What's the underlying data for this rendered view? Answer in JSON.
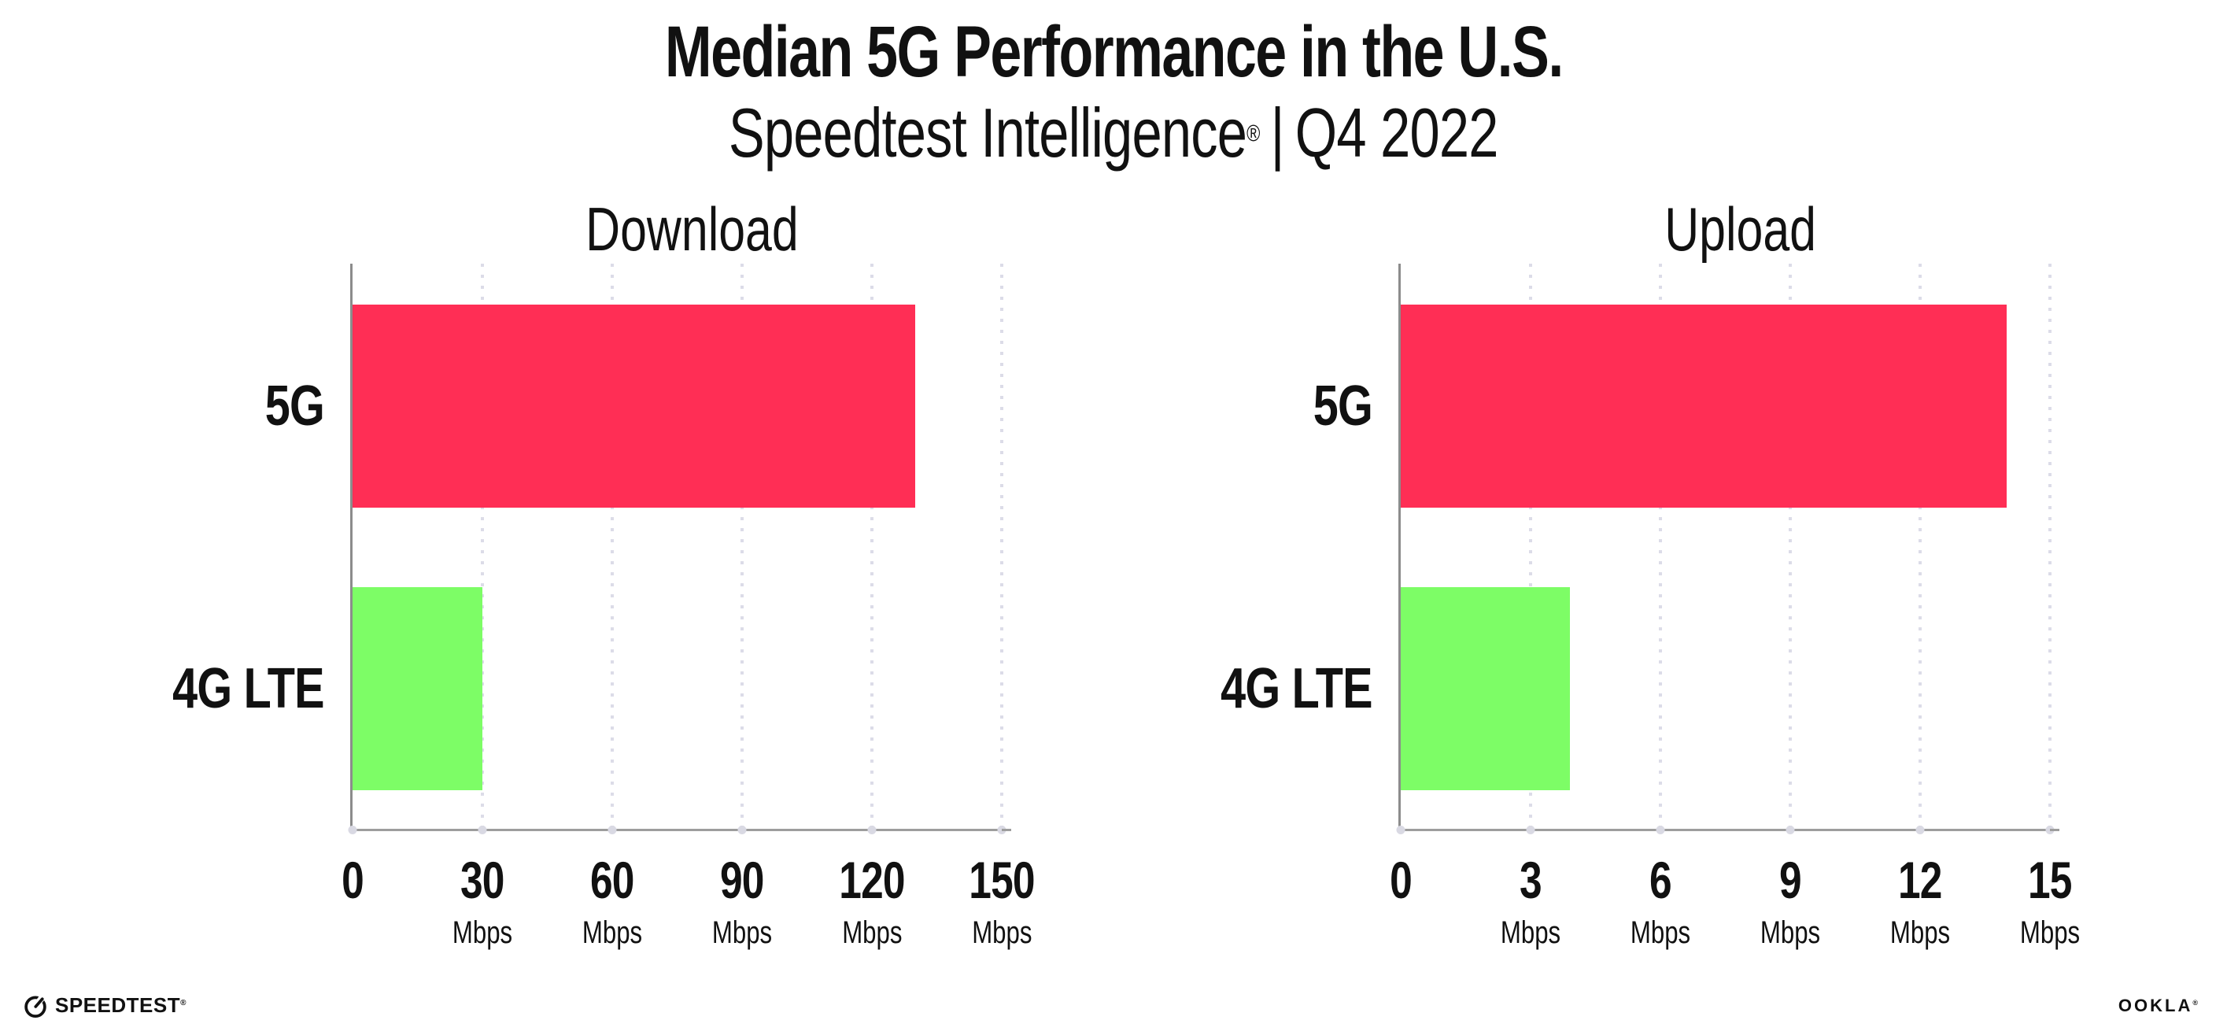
{
  "header": {
    "title": "Median 5G Performance in the U.S.",
    "subtitle": {
      "brand": "Speedtest Intelligence",
      "registered": "®",
      "divider": "|",
      "period": "Q4 2022"
    }
  },
  "chart_data": [
    {
      "type": "bar",
      "orientation": "horizontal",
      "title": "Download",
      "categories": [
        "5G",
        "4G LTE"
      ],
      "values": [
        130,
        30
      ],
      "unit": "Mbps",
      "xlim": [
        0,
        150
      ],
      "xticks": [
        0,
        30,
        60,
        90,
        120,
        150
      ],
      "tick_unit_label": "Mbps",
      "grid": "vertical-dotted",
      "legend": "none",
      "bar_colors": [
        "#FF2E55",
        "#7DFD66"
      ]
    },
    {
      "type": "bar",
      "orientation": "horizontal",
      "title": "Upload",
      "categories": [
        "5G",
        "4G LTE"
      ],
      "values": [
        14,
        3.9
      ],
      "unit": "Mbps",
      "xlim": [
        0,
        15
      ],
      "xticks": [
        0,
        3,
        6,
        9,
        12,
        15
      ],
      "tick_unit_label": "Mbps",
      "grid": "vertical-dotted",
      "legend": "none",
      "bar_colors": [
        "#FF2E55",
        "#7DFD66"
      ]
    }
  ],
  "colors": {
    "bar_5g": "#FF2E55",
    "bar_4g_lte": "#7DFD66",
    "axis": "#8C8C8C",
    "gridline": "#DCDCE8",
    "text": "#111111",
    "background": "#FFFFFF"
  },
  "footer": {
    "speedtest": {
      "label": "SPEEDTEST",
      "registered": "®"
    },
    "ookla": {
      "label": "OOKLA",
      "registered": "®"
    }
  }
}
